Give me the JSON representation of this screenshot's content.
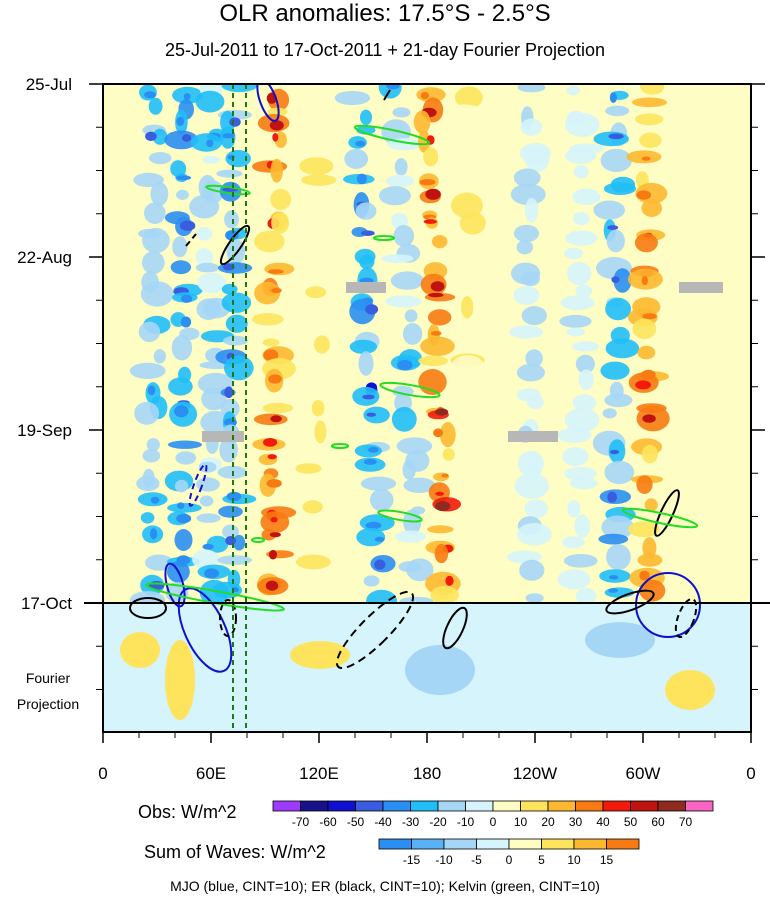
{
  "title": "OLR anomalies: 17.5°S - 2.5°S",
  "subtitle": "25-Jul-2011 to 17-Oct-2011 + 21-day Fourier Projection",
  "fourier_label": [
    "Fourier",
    "Projection"
  ],
  "footer": "MJO (blue, CINT=10); ER (black, CINT=10); Kelvin (green, CINT=10)",
  "colorbar_obs": {
    "title": "Obs: W/m^2",
    "labels": [
      "-70",
      "-60",
      "-50",
      "-40",
      "-30",
      "-20",
      "-10",
      "0",
      "10",
      "20",
      "30",
      "40",
      "50",
      "60",
      "70"
    ],
    "colors": [
      "#9f3bff",
      "#17118a",
      "#1010d0",
      "#3a5cde",
      "#2a8ef2",
      "#1fbef8",
      "#a6d6f6",
      "#d6f4fc",
      "#fdfdc4",
      "#fde45c",
      "#fdb830",
      "#f77b12",
      "#f21b0b",
      "#c0120e",
      "#902a1f",
      "#f865c5"
    ]
  },
  "colorbar_waves": {
    "title": "Sum of Waves: W/m^2",
    "labels": [
      "-15",
      "-10",
      "-5",
      "0",
      "5",
      "10",
      "15"
    ],
    "colors": [
      "#2a8ef2",
      "#59b2f5",
      "#a6d6f6",
      "#d6f4fc",
      "#fdfdc4",
      "#fde45c",
      "#fdb830",
      "#f77b12"
    ]
  },
  "chart_data": {
    "type": "heatmap",
    "title": "OLR anomalies: 17.5°S - 2.5°S",
    "subtitle": "25-Jul-2011 to 17-Oct-2011 + 21-day Fourier Projection",
    "x_ticks": [
      "0",
      "60E",
      "120E",
      "180",
      "120W",
      "60W",
      "0"
    ],
    "x_range_lon": [
      0,
      360
    ],
    "y_ticks": [
      "25-Jul",
      "22-Aug",
      "19-Sep",
      "17-Oct"
    ],
    "y_range": [
      "25-Jul-2011",
      "07-Nov-2011"
    ],
    "observation_end": "17-Oct-2011",
    "projection_days": 21,
    "reference_lines_lon": [
      72,
      80
    ],
    "bands": [
      {
        "lon": 28,
        "value": -22
      },
      {
        "lon": 45,
        "value": -28
      },
      {
        "lon": 60,
        "value": -18
      },
      {
        "lon": 72,
        "value": -24
      },
      {
        "lon": 95,
        "value": 30
      },
      {
        "lon": 118,
        "value": 12
      },
      {
        "lon": 142,
        "value": -26
      },
      {
        "lon": 163,
        "value": -18
      },
      {
        "lon": 180,
        "value": 32
      },
      {
        "lon": 200,
        "value": 8
      },
      {
        "lon": 238,
        "value": -10
      },
      {
        "lon": 265,
        "value": -8
      },
      {
        "lon": 285,
        "value": -24
      },
      {
        "lon": 302,
        "value": 26
      },
      {
        "lon": 330,
        "value": 6
      },
      {
        "lon": 348,
        "value": 5
      }
    ],
    "contours": [
      {
        "wave": "MJO",
        "color": "blue",
        "cint": 10
      },
      {
        "wave": "ER",
        "color": "black",
        "cint": 10
      },
      {
        "wave": "Kelvin",
        "color": "green",
        "cint": 10
      }
    ]
  }
}
